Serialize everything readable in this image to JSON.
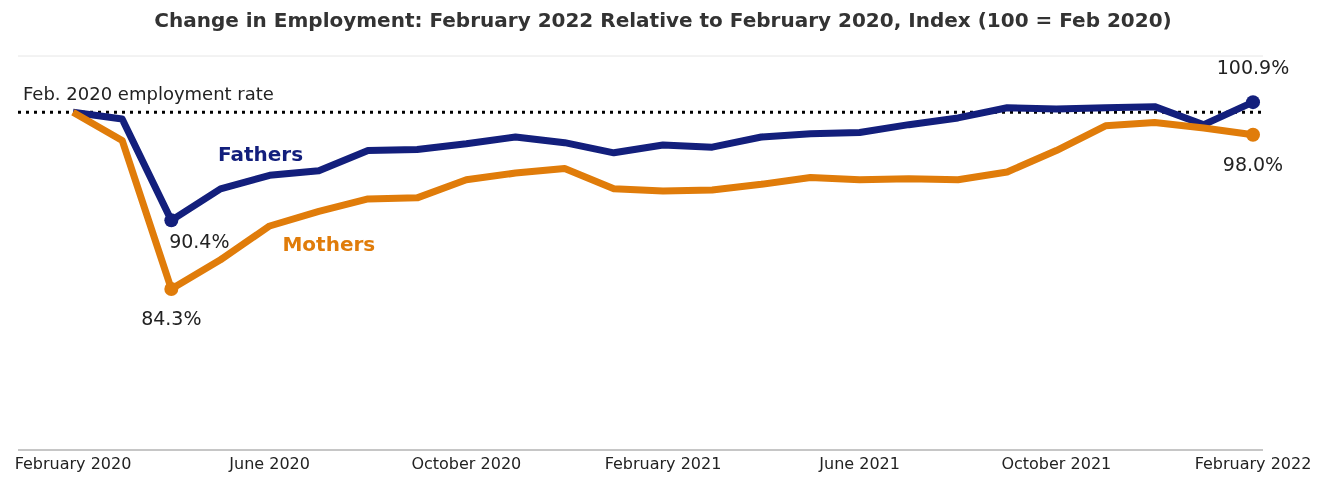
{
  "chart_data": {
    "type": "line",
    "title": "Change in Employment: February 2022 Relative to February 2020, Index (100 = Feb 2020)",
    "categories": [
      "February 2020",
      null,
      null,
      null,
      "June 2020",
      null,
      null,
      null,
      "October 2020",
      null,
      null,
      null,
      "February 2021",
      null,
      null,
      null,
      "June 2021",
      null,
      null,
      null,
      "October 2021",
      null,
      null,
      null,
      "February 2022"
    ],
    "series": [
      {
        "name": "Fathers",
        "color": "#131f7c",
        "values": [
          100,
          99.4,
          90.4,
          93.2,
          94.4,
          94.8,
          96.6,
          96.7,
          97.2,
          97.8,
          97.3,
          96.4,
          97.1,
          96.9,
          97.8,
          98.1,
          98.2,
          98.9,
          99.5,
          100.4,
          100.3,
          100.4,
          100.5,
          98.9,
          100.9
        ],
        "value_labels": [
          null,
          null,
          "90.4%",
          null,
          null,
          null,
          null,
          null,
          null,
          null,
          null,
          null,
          null,
          null,
          null,
          null,
          null,
          null,
          null,
          null,
          null,
          null,
          null,
          null,
          "100.9%"
        ]
      },
      {
        "name": "Mothers",
        "color": "#e07c0a",
        "values": [
          100,
          97.5,
          84.3,
          86.9,
          89.9,
          91.2,
          92.3,
          92.4,
          94.0,
          94.6,
          95.0,
          93.2,
          93.0,
          93.1,
          93.6,
          94.2,
          94.0,
          94.1,
          94.0,
          94.7,
          96.6,
          98.8,
          99.1,
          98.6,
          98.0
        ],
        "value_labels": [
          null,
          null,
          "84.3%",
          null,
          null,
          null,
          null,
          null,
          null,
          null,
          null,
          null,
          null,
          null,
          null,
          null,
          null,
          null,
          null,
          null,
          null,
          null,
          null,
          null,
          "98.0%"
        ]
      }
    ],
    "ylim": [
      70,
      105
    ],
    "tick_labels": "x",
    "grid": "y",
    "legend": false,
    "line_style": "solid",
    "ref_lines": [
      {
        "axis": "y",
        "value": 100,
        "label": "Feb. 2020 employment rate",
        "color": "#000000",
        "line_style": "dotted"
      }
    ]
  }
}
